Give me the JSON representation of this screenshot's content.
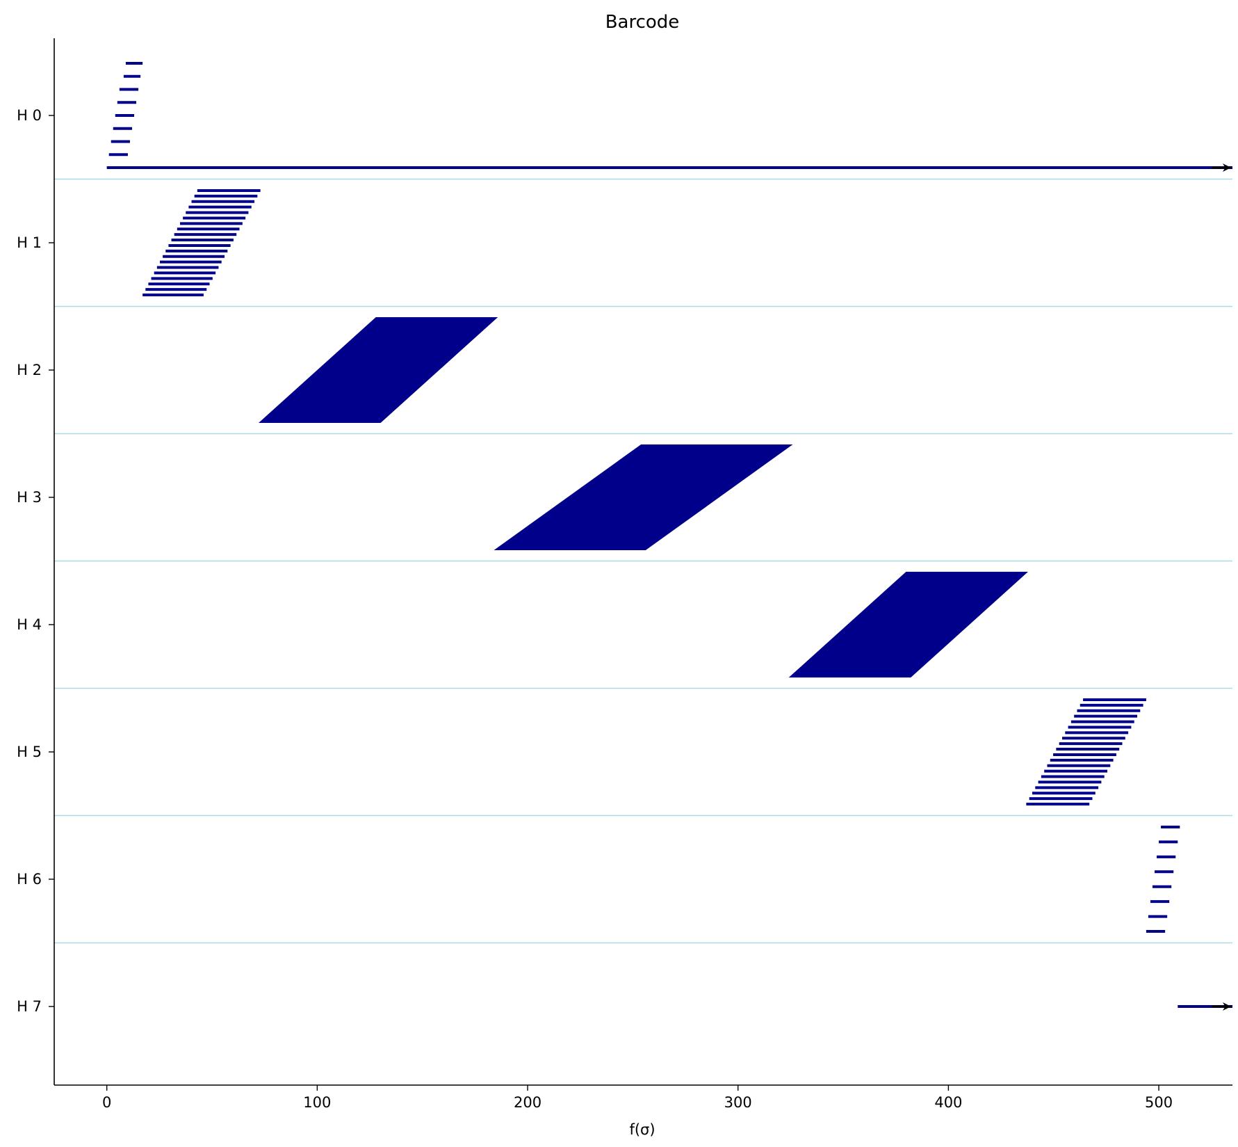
{
  "chart_data": {
    "type": "barcode",
    "title": "Barcode",
    "xlabel": "f(σ)",
    "ylabel": "",
    "xlim": [
      -25,
      535
    ],
    "x_ticks": [
      0,
      100,
      200,
      300,
      400,
      500
    ],
    "grid": false,
    "legend": "none",
    "bar_color": "#00008B",
    "separator_color": "#add8e6",
    "arrow_color": "#000000",
    "dimensions": [
      {
        "label": "H 0",
        "bars": [
          {
            "start": 9,
            "end": 17
          },
          {
            "start": 8,
            "end": 16
          },
          {
            "start": 6,
            "end": 15
          },
          {
            "start": 5,
            "end": 14
          },
          {
            "start": 4,
            "end": 13
          },
          {
            "start": 3,
            "end": 12
          },
          {
            "start": 2,
            "end": 11
          },
          {
            "start": 1,
            "end": 10
          },
          {
            "start": 0,
            "end": null
          }
        ]
      },
      {
        "label": "H 1",
        "bars": [
          {
            "start": 43,
            "end": 73
          },
          {
            "start": 17,
            "end": 46
          }
        ],
        "fill": "band",
        "count": 20
      },
      {
        "label": "H 2",
        "bars": [
          {
            "start": 128,
            "end": 185
          },
          {
            "start": 73,
            "end": 130
          }
        ],
        "fill": "band",
        "count": 80
      },
      {
        "label": "H 3",
        "bars": [
          {
            "start": 254,
            "end": 325
          },
          {
            "start": 185,
            "end": 256
          }
        ],
        "fill": "band",
        "count": 80
      },
      {
        "label": "H 4",
        "bars": [
          {
            "start": 380,
            "end": 437
          },
          {
            "start": 325,
            "end": 382
          }
        ],
        "fill": "band",
        "count": 80
      },
      {
        "label": "H 5",
        "bars": [
          {
            "start": 464,
            "end": 494
          },
          {
            "start": 437,
            "end": 467
          }
        ],
        "fill": "band",
        "count": 20
      },
      {
        "label": "H 6",
        "bars": [
          {
            "start": 501,
            "end": 510
          },
          {
            "start": 500,
            "end": 509
          },
          {
            "start": 499,
            "end": 508
          },
          {
            "start": 498,
            "end": 507
          },
          {
            "start": 497,
            "end": 506
          },
          {
            "start": 496,
            "end": 505
          },
          {
            "start": 495,
            "end": 504
          },
          {
            "start": 494,
            "end": 503
          }
        ]
      },
      {
        "label": "H 7",
        "bars": [
          {
            "start": 509,
            "end": null
          }
        ]
      }
    ]
  }
}
